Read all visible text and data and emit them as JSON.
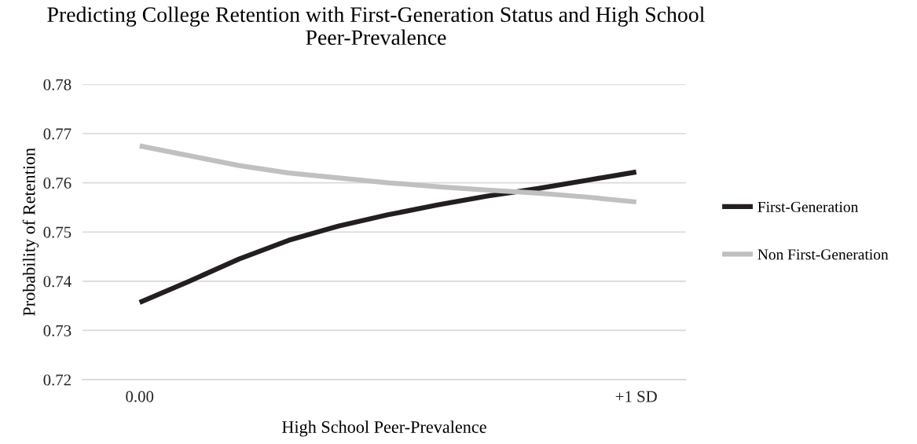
{
  "chart_data": {
    "type": "line",
    "title": "Predicting College Retention with First-Generation Status and High School Peer-Prevalence",
    "xlabel": "High School Peer-Prevalence",
    "ylabel": "Probability of Retention",
    "x": [
      0,
      0.1,
      0.2,
      0.3,
      0.4,
      0.5,
      0.6,
      0.7,
      0.8,
      0.9,
      1.0
    ],
    "series": [
      {
        "name": "First-Generation",
        "color": "#231f20",
        "values": [
          0.7357,
          0.74,
          0.7445,
          0.7483,
          0.7512,
          0.7535,
          0.7555,
          0.7573,
          0.7588,
          0.7605,
          0.7622
        ]
      },
      {
        "name": "Non First-Generation",
        "color": "#c0c0c0",
        "values": [
          0.7675,
          0.7655,
          0.7635,
          0.762,
          0.761,
          0.76,
          0.7592,
          0.7585,
          0.7579,
          0.7571,
          0.7561
        ]
      }
    ],
    "xlim": [
      -0.115,
      1.1
    ],
    "xticks": [
      {
        "value": 0,
        "label": "0.00"
      },
      {
        "value": 1,
        "label": "+1 SD"
      }
    ],
    "ylim": [
      0.72,
      0.78
    ],
    "yticks": [
      0.72,
      0.73,
      0.74,
      0.75,
      0.76,
      0.77,
      0.78
    ],
    "grid": "y",
    "legend": "right",
    "marker": "none",
    "line_style": "solid"
  }
}
